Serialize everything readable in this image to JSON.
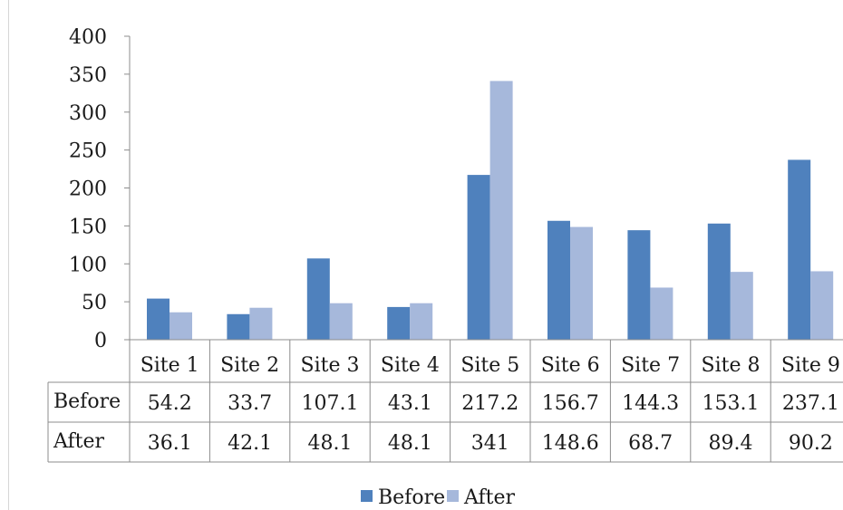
{
  "chart_data": {
    "type": "bar",
    "categories": [
      "Site 1",
      "Site 2",
      "Site 3",
      "Site 4",
      "Site 5",
      "Site 6",
      "Site 7",
      "Site 8",
      "Site 9"
    ],
    "series": [
      {
        "name": "Before",
        "values": [
          54.2,
          33.7,
          107.1,
          43.1,
          217.2,
          156.7,
          144.3,
          153.1,
          237.1
        ],
        "labels": [
          "54.2",
          "33.7",
          "107.1",
          "43.1",
          "217.2",
          "156.7",
          "144.3",
          "153.1",
          "237.1"
        ],
        "color": "#4f81bd"
      },
      {
        "name": "After",
        "values": [
          36.1,
          42.1,
          48.1,
          48.1,
          341,
          148.6,
          68.7,
          89.4,
          90.2
        ],
        "labels": [
          "36.1",
          "42.1",
          "48.1",
          "48.1",
          "341",
          "148.6",
          "68.7",
          "89.4",
          "90.2"
        ],
        "color": "#a6b8db"
      }
    ],
    "ylim": [
      0,
      400
    ],
    "yticks": [
      "0",
      "50",
      "100",
      "150",
      "200",
      "250",
      "300",
      "350",
      "400"
    ],
    "grid": false,
    "legend": "bottom",
    "data_table": true
  }
}
